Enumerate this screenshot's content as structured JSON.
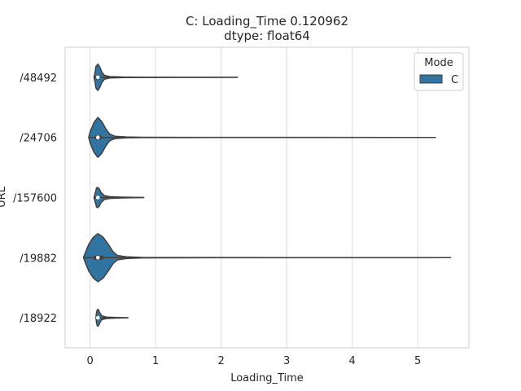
{
  "chart_data": {
    "type": "violin",
    "orientation": "horizontal",
    "title_line1": "C: Loading_Time    0.120962",
    "title_line2": "dtype: float64",
    "xlabel": "Loading_Time",
    "ylabel": "URL",
    "xlim": [
      -0.38,
      5.78
    ],
    "xticks": [
      0,
      1,
      2,
      3,
      4,
      5
    ],
    "grid": "vertical",
    "legend": {
      "title": "Mode",
      "entries": [
        "C"
      ],
      "placement": "top-right"
    },
    "series_color": "#3274a1",
    "categories": [
      "/48492",
      "/24706",
      "/157600",
      "/19882",
      "/18922"
    ],
    "violins": [
      {
        "category": "/48492",
        "median": 0.12,
        "q1": 0.09,
        "q3": 0.15,
        "whisker_low": 0.06,
        "max": 2.25,
        "width_scale": 0.55,
        "profile": [
          [
            0.06,
            0.0
          ],
          [
            0.075,
            0.18
          ],
          [
            0.09,
            0.45
          ],
          [
            0.12,
            0.55
          ],
          [
            0.15,
            0.42
          ],
          [
            0.18,
            0.22
          ],
          [
            0.22,
            0.08
          ],
          [
            0.3,
            0.03
          ],
          [
            0.5,
            0.012
          ],
          [
            0.75,
            0.006
          ],
          [
            1.2,
            0.003
          ],
          [
            2.25,
            0.0
          ]
        ]
      },
      {
        "category": "/24706",
        "median": 0.12,
        "q1": 0.08,
        "q3": 0.17,
        "whisker_low": -0.02,
        "max": 5.27,
        "width_scale": 0.83,
        "profile": [
          [
            -0.02,
            0.0
          ],
          [
            0.0,
            0.22
          ],
          [
            0.06,
            0.62
          ],
          [
            0.12,
            0.83
          ],
          [
            0.18,
            0.66
          ],
          [
            0.24,
            0.36
          ],
          [
            0.3,
            0.14
          ],
          [
            0.38,
            0.05
          ],
          [
            0.55,
            0.02
          ],
          [
            0.8,
            0.008
          ],
          [
            1.5,
            0.004
          ],
          [
            3.0,
            0.002
          ],
          [
            5.27,
            0.0
          ]
        ]
      },
      {
        "category": "/157600",
        "median": 0.12,
        "q1": 0.1,
        "q3": 0.14,
        "whisker_low": 0.06,
        "max": 0.82,
        "width_scale": 0.42,
        "profile": [
          [
            0.06,
            0.0
          ],
          [
            0.08,
            0.2
          ],
          [
            0.1,
            0.4
          ],
          [
            0.12,
            0.42
          ],
          [
            0.14,
            0.36
          ],
          [
            0.17,
            0.2
          ],
          [
            0.22,
            0.08
          ],
          [
            0.3,
            0.04
          ],
          [
            0.45,
            0.02
          ],
          [
            0.65,
            0.01
          ],
          [
            0.82,
            0.0
          ]
        ]
      },
      {
        "category": "/19882",
        "median": 0.12,
        "q1": 0.06,
        "q3": 0.2,
        "whisker_low": -0.1,
        "max": 5.5,
        "width_scale": 1.0,
        "profile": [
          [
            -0.1,
            0.0
          ],
          [
            -0.07,
            0.22
          ],
          [
            -0.02,
            0.55
          ],
          [
            0.05,
            0.85
          ],
          [
            0.12,
            1.0
          ],
          [
            0.2,
            0.85
          ],
          [
            0.28,
            0.55
          ],
          [
            0.35,
            0.25
          ],
          [
            0.42,
            0.09
          ],
          [
            0.55,
            0.035
          ],
          [
            0.8,
            0.012
          ],
          [
            1.5,
            0.005
          ],
          [
            3.0,
            0.003
          ],
          [
            5.5,
            0.0
          ]
        ]
      },
      {
        "category": "/18922",
        "median": 0.12,
        "q1": 0.1,
        "q3": 0.13,
        "whisker_low": 0.09,
        "max": 0.58,
        "width_scale": 0.35,
        "profile": [
          [
            0.09,
            0.0
          ],
          [
            0.1,
            0.25
          ],
          [
            0.115,
            0.35
          ],
          [
            0.13,
            0.33
          ],
          [
            0.15,
            0.2
          ],
          [
            0.18,
            0.08
          ],
          [
            0.25,
            0.03
          ],
          [
            0.4,
            0.012
          ],
          [
            0.58,
            0.0
          ]
        ]
      }
    ]
  }
}
